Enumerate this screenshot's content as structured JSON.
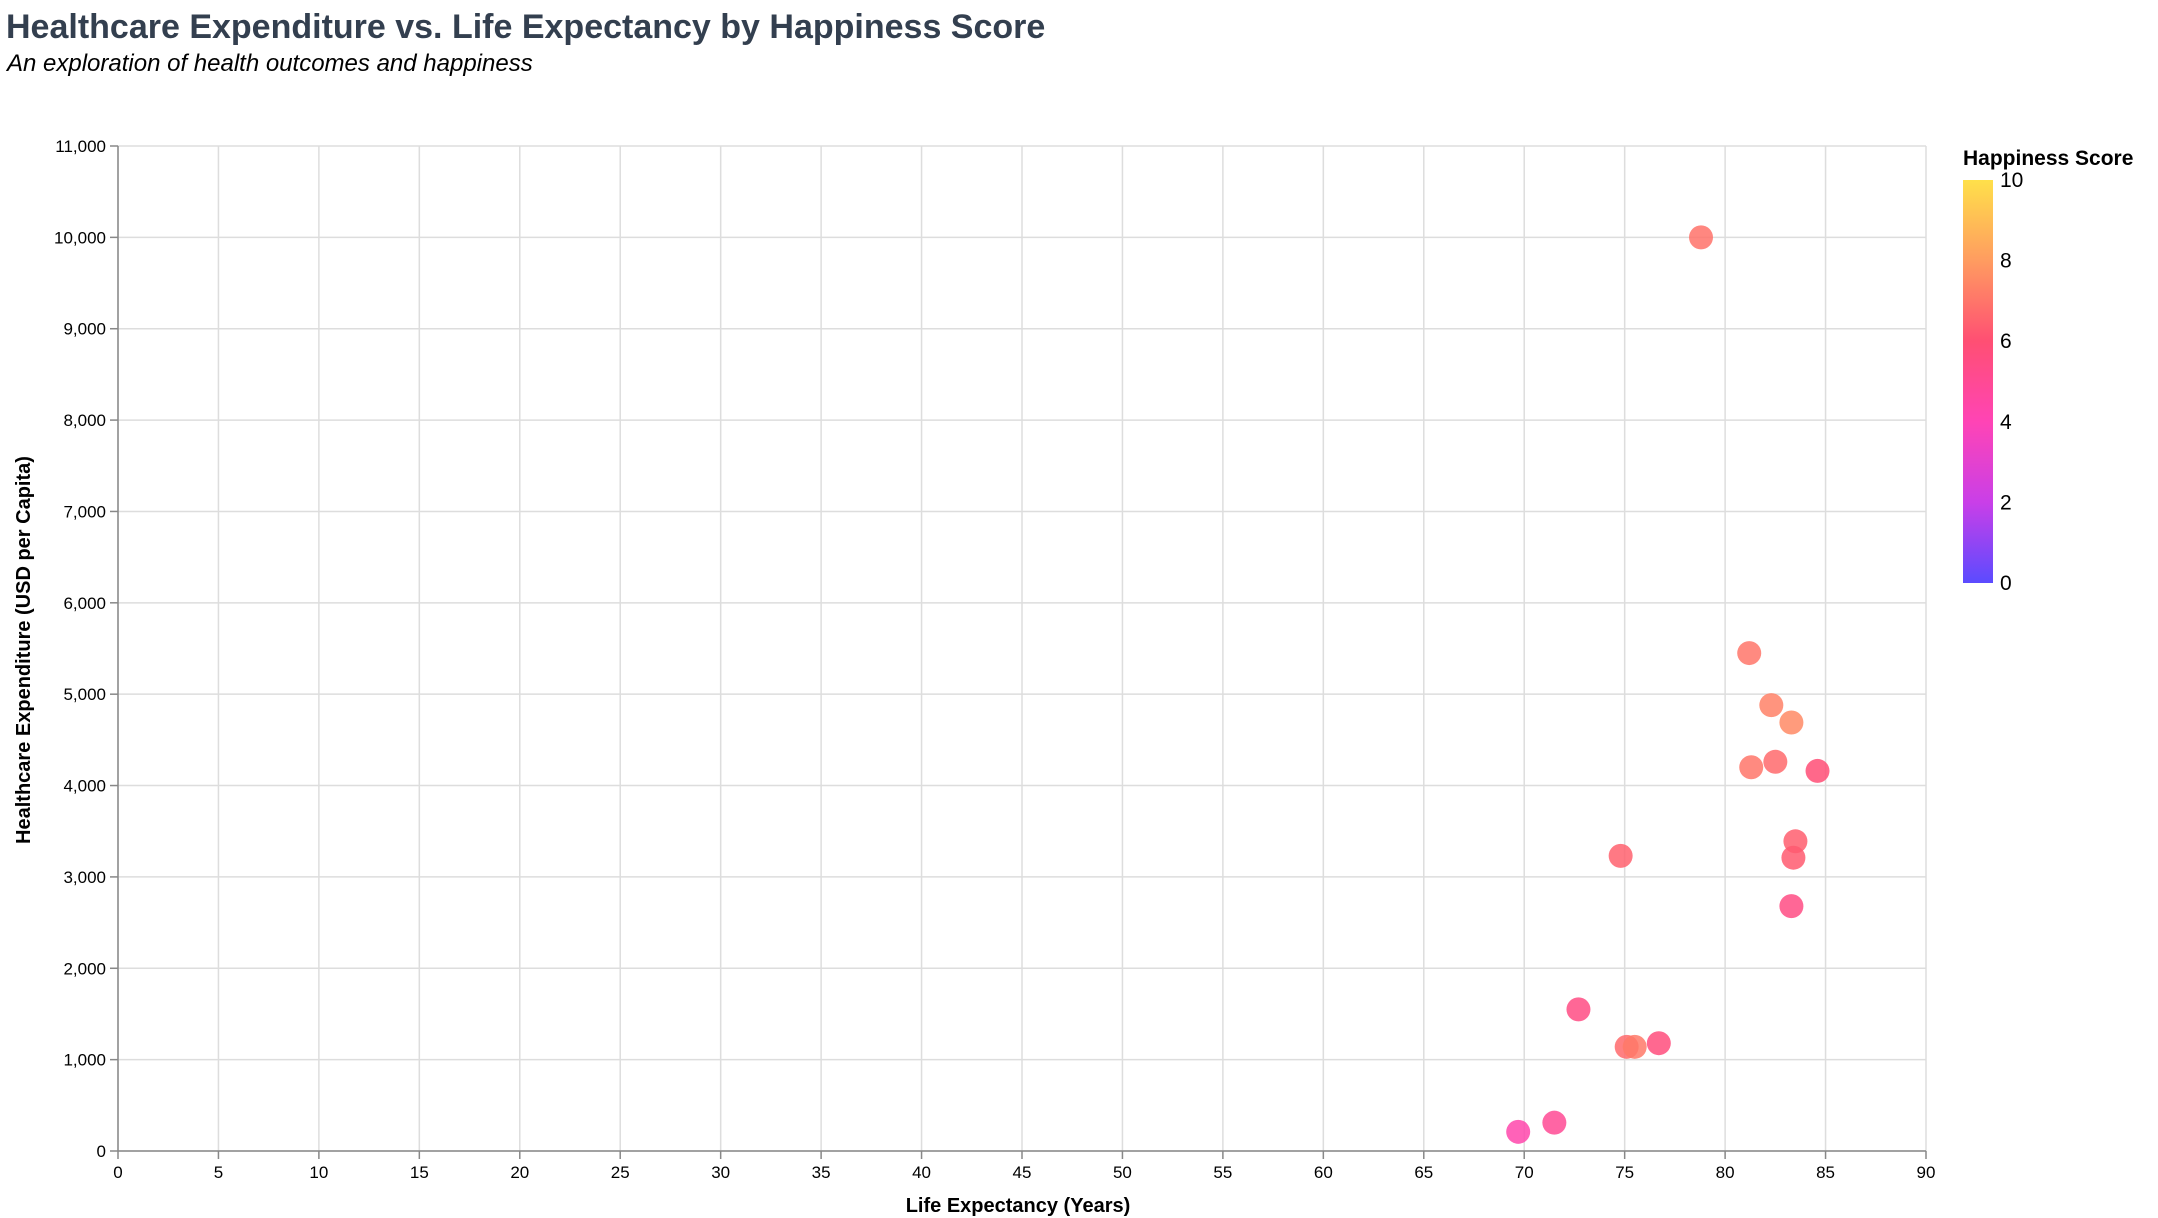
{
  "chart_data": {
    "type": "scatter",
    "title": "Healthcare Expenditure vs. Life Expectancy by Happiness Score",
    "subtitle": "An exploration of health outcomes and happiness",
    "xlabel": "Life Expectancy (Years)",
    "ylabel": "Healthcare Expenditure (USD per Capita)",
    "xlim": [
      0,
      90
    ],
    "ylim": [
      0,
      11000
    ],
    "x_ticks": [
      0,
      5,
      10,
      15,
      20,
      25,
      30,
      35,
      40,
      45,
      50,
      55,
      60,
      65,
      70,
      75,
      80,
      85,
      90
    ],
    "y_ticks": [
      0,
      1000,
      2000,
      3000,
      4000,
      5000,
      6000,
      7000,
      8000,
      9000,
      10000,
      11000
    ],
    "y_tick_labels": [
      "0",
      "1,000",
      "2,000",
      "3,000",
      "4,000",
      "5,000",
      "6,000",
      "7,000",
      "8,000",
      "9,000",
      "10,000",
      "11,000"
    ],
    "grid": true,
    "legend": {
      "title": "Happiness Score",
      "placement": "top-right",
      "domain": [
        0,
        10
      ],
      "ticks": [
        0,
        2,
        4,
        6,
        8,
        10
      ],
      "tick_labels": [
        "0",
        "2",
        "4",
        "6",
        "8",
        "10"
      ],
      "colors": [
        "#5b4bff",
        "#c93fe8",
        "#ff44b5",
        "#ff4f73",
        "#ff9c60",
        "#ffe04a"
      ]
    },
    "points": [
      {
        "x": 78.8,
        "y": 10000,
        "happiness": 6.9
      },
      {
        "x": 81.2,
        "y": 5450,
        "happiness": 7.0
      },
      {
        "x": 82.3,
        "y": 4880,
        "happiness": 7.3
      },
      {
        "x": 83.3,
        "y": 4690,
        "happiness": 7.5
      },
      {
        "x": 82.5,
        "y": 4260,
        "happiness": 6.7
      },
      {
        "x": 81.3,
        "y": 4200,
        "happiness": 7.0
      },
      {
        "x": 84.6,
        "y": 4160,
        "happiness": 5.9
      },
      {
        "x": 83.5,
        "y": 3390,
        "happiness": 6.4
      },
      {
        "x": 74.8,
        "y": 3230,
        "happiness": 6.5
      },
      {
        "x": 83.4,
        "y": 3210,
        "happiness": 6.3
      },
      {
        "x": 83.3,
        "y": 2680,
        "happiness": 5.5
      },
      {
        "x": 72.7,
        "y": 1550,
        "happiness": 5.5
      },
      {
        "x": 75.1,
        "y": 1140,
        "happiness": 6.7
      },
      {
        "x": 75.5,
        "y": 1140,
        "happiness": 7.1
      },
      {
        "x": 76.7,
        "y": 1180,
        "happiness": 5.7
      },
      {
        "x": 71.5,
        "y": 310,
        "happiness": 5.0
      },
      {
        "x": 69.7,
        "y": 210,
        "happiness": 4.3
      }
    ]
  }
}
